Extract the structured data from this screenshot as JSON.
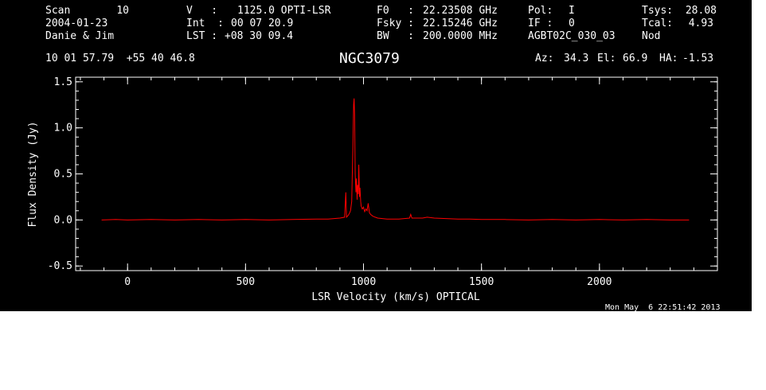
{
  "header": {
    "scan_label": "Scan",
    "scan_value": "10",
    "date": "2004-01-23",
    "observers": "Danie & Jim",
    "v_label": "V   :",
    "v_value": "1125.0 OPTI-LSR",
    "int_label": "Int  :",
    "int_value": "00 07 20.9",
    "lst_label": "LST :",
    "lst_value": "+08 30 09.4",
    "f0_label": "F0   :",
    "f0_value": "22.23508 GHz",
    "fsky_label": "Fsky :",
    "fsky_value": "22.15246 GHz",
    "bw_label": "BW   :",
    "bw_value": "200.0000 MHz",
    "pol_label": "Pol:",
    "pol_value": "I",
    "if_label": "IF :",
    "if_value": "0",
    "project": "AGBT02C_030_03",
    "tsys_label": "Tsys:",
    "tsys_value": "28.08",
    "tcal_label": "Tcal:",
    "tcal_value": "4.93",
    "mode": "Nod",
    "coords": "10 01 57.79  +55 40 46.8",
    "source": "NGC3079",
    "az_label": "Az:",
    "az_value": "34.3",
    "el_label": "El:",
    "el_value": "66.9",
    "ha_label": "HA:",
    "ha_value": "-1.53"
  },
  "timestamp": "Mon May  6 22:51:42 2013",
  "colors": {
    "background": "#000000",
    "axes": "#ffffff",
    "trace": "#ff0000",
    "page": "#ffffff"
  },
  "chart_data": {
    "type": "line",
    "xlabel": "LSR Velocity (km/s) OPTICAL",
    "ylabel": "Flux Density (Jy)",
    "xlim": [
      -220,
      2500
    ],
    "ylim": [
      -0.55,
      1.55
    ],
    "x_ticks": [
      0,
      500,
      1000,
      1500,
      2000
    ],
    "x_tick_labels": [
      "0",
      "500",
      "1000",
      "1500",
      "2000"
    ],
    "y_ticks": [
      -0.5,
      0.0,
      0.5,
      1.0,
      1.5
    ],
    "y_tick_labels": [
      "-0.5",
      "0.0",
      "0.5",
      "1.0",
      "1.5"
    ],
    "grid": false,
    "series": [
      {
        "x": [
          -110,
          -50,
          0,
          100,
          200,
          300,
          400,
          500,
          600,
          700,
          800,
          850,
          900,
          920,
          925,
          928,
          935,
          940,
          945,
          950,
          955,
          958,
          960,
          962,
          965,
          968,
          970,
          973,
          975,
          978,
          980,
          983,
          985,
          988,
          990,
          995,
          1000,
          1005,
          1010,
          1015,
          1020,
          1025,
          1030,
          1040,
          1050,
          1060,
          1080,
          1100,
          1150,
          1195,
          1200,
          1205,
          1250,
          1270,
          1300,
          1350,
          1400,
          1450,
          1500,
          1600,
          1700,
          1800,
          1900,
          2000,
          2100,
          2200,
          2300,
          2380
        ],
        "y": [
          0.0,
          0.005,
          0.0,
          0.005,
          0.0,
          0.005,
          0.0,
          0.005,
          0.0,
          0.005,
          0.01,
          0.01,
          0.02,
          0.03,
          0.3,
          0.03,
          0.05,
          0.07,
          0.1,
          0.2,
          0.8,
          1.25,
          1.32,
          1.15,
          0.5,
          0.3,
          0.45,
          0.22,
          0.38,
          0.28,
          0.6,
          0.25,
          0.35,
          0.2,
          0.15,
          0.12,
          0.14,
          0.09,
          0.12,
          0.1,
          0.18,
          0.08,
          0.06,
          0.04,
          0.03,
          0.02,
          0.015,
          0.01,
          0.01,
          0.02,
          0.06,
          0.02,
          0.02,
          0.03,
          0.02,
          0.015,
          0.01,
          0.01,
          0.005,
          0.005,
          0.0,
          0.005,
          0.0,
          0.005,
          0.0,
          0.005,
          0.0,
          0.0
        ]
      }
    ]
  }
}
